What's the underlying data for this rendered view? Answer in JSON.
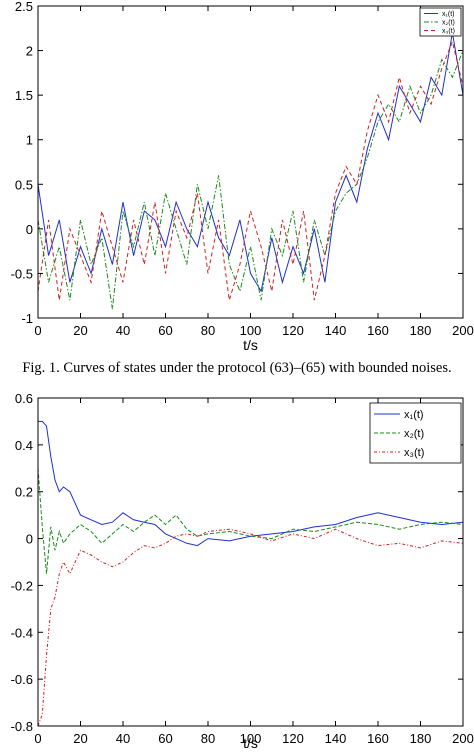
{
  "caption": "Fig. 1.   Curves of states under the protocol (63)–(65) with bounded noises.",
  "chart_data": [
    {
      "type": "line",
      "xlabel": "t/s",
      "ylabel": "",
      "xlim": [
        0,
        200
      ],
      "ylim": [
        -1,
        2.5
      ],
      "xticks": [
        "0",
        "20",
        "40",
        "60",
        "80",
        "100",
        "120",
        "140",
        "160",
        "180",
        "200"
      ],
      "yticks": [
        "-1",
        "-0.5",
        "0",
        "0.5",
        "1",
        "1.5",
        "2",
        "2.5"
      ],
      "grid": false,
      "legend": "top-right",
      "x": [
        0,
        5,
        10,
        15,
        20,
        25,
        30,
        35,
        40,
        45,
        50,
        55,
        60,
        65,
        70,
        75,
        80,
        85,
        90,
        95,
        100,
        105,
        110,
        115,
        120,
        125,
        130,
        135,
        140,
        145,
        150,
        155,
        160,
        165,
        170,
        175,
        180,
        185,
        190,
        195,
        200
      ],
      "series": [
        {
          "name": "x₁(t)",
          "color": "#1f2fd0",
          "dash": "",
          "values": [
            0.5,
            -0.3,
            0.1,
            -0.6,
            -0.2,
            -0.5,
            0.0,
            -0.4,
            0.3,
            -0.3,
            0.2,
            0.1,
            -0.2,
            0.3,
            0.0,
            -0.2,
            0.3,
            -0.1,
            -0.3,
            0.1,
            -0.5,
            -0.7,
            -0.1,
            -0.6,
            -0.2,
            -0.5,
            0.0,
            -0.6,
            0.3,
            0.6,
            0.3,
            0.9,
            1.3,
            1.0,
            1.6,
            1.4,
            1.2,
            1.7,
            1.5,
            2.2,
            1.5
          ]
        },
        {
          "name": "x₂(t)",
          "color": "#1a8a1a",
          "dash": "5,2,1.5,2",
          "values": [
            0.1,
            -0.6,
            -0.2,
            -0.8,
            0.1,
            -0.4,
            -0.1,
            -0.9,
            0.2,
            -0.2,
            0.3,
            -0.3,
            0.4,
            0.0,
            -0.4,
            0.5,
            0.0,
            0.6,
            -0.4,
            -0.7,
            -0.2,
            -0.8,
            0.0,
            -0.3,
            0.2,
            -0.6,
            0.1,
            -0.3,
            0.2,
            0.4,
            0.5,
            0.8,
            1.2,
            1.4,
            1.2,
            1.6,
            1.3,
            1.5,
            1.9,
            1.7,
            2.0
          ]
        },
        {
          "name": "x₃(t)",
          "color": "#d02020",
          "dash": "4,3",
          "values": [
            -0.7,
            0.1,
            -0.8,
            0.0,
            -0.3,
            -0.6,
            0.2,
            -0.2,
            -0.6,
            0.1,
            -0.4,
            0.3,
            -0.5,
            0.2,
            -0.1,
            0.4,
            -0.5,
            0.1,
            -0.8,
            -0.4,
            0.2,
            -0.2,
            -0.7,
            0.1,
            -0.4,
            0.2,
            -0.8,
            -0.3,
            0.4,
            0.7,
            0.5,
            1.1,
            1.5,
            1.2,
            1.7,
            1.3,
            1.6,
            1.4,
            1.8,
            2.1,
            1.6
          ]
        }
      ]
    },
    {
      "type": "line",
      "xlabel": "t/s",
      "ylabel": "",
      "xlim": [
        0,
        200
      ],
      "ylim": [
        -0.8,
        0.6
      ],
      "xticks": [
        "0",
        "20",
        "40",
        "60",
        "80",
        "100",
        "120",
        "140",
        "160",
        "180",
        "200"
      ],
      "yticks": [
        "-0.8",
        "-0.6",
        "-0.4",
        "-0.2",
        "0",
        "0.2",
        "0.4",
        "0.6"
      ],
      "grid": false,
      "legend": "top-right",
      "x": [
        0,
        2,
        4,
        6,
        8,
        10,
        12,
        15,
        20,
        25,
        30,
        35,
        40,
        45,
        50,
        55,
        60,
        65,
        70,
        75,
        80,
        90,
        100,
        110,
        120,
        130,
        140,
        150,
        160,
        170,
        180,
        190,
        200
      ],
      "series": [
        {
          "name": "x₁(t)",
          "color": "#1f2fd0",
          "dash": "",
          "values": [
            0.5,
            0.5,
            0.48,
            0.35,
            0.25,
            0.2,
            0.22,
            0.2,
            0.1,
            0.08,
            0.06,
            0.07,
            0.11,
            0.08,
            0.07,
            0.06,
            0.02,
            0.0,
            -0.02,
            -0.03,
            0.0,
            -0.01,
            0.01,
            0.02,
            0.03,
            0.05,
            0.06,
            0.09,
            0.11,
            0.09,
            0.07,
            0.06,
            0.07
          ]
        },
        {
          "name": "x₂(t)",
          "color": "#1a8a1a",
          "dash": "4,2",
          "values": [
            0.3,
            0.05,
            -0.15,
            0.05,
            -0.05,
            0.03,
            -0.02,
            0.02,
            0.06,
            0.03,
            -0.02,
            0.02,
            0.06,
            0.03,
            0.07,
            0.1,
            0.06,
            0.1,
            0.04,
            0.01,
            0.02,
            0.03,
            0.01,
            0.0,
            0.04,
            0.03,
            0.05,
            0.07,
            0.06,
            0.04,
            0.06,
            0.07,
            0.06
          ]
        },
        {
          "name": "x₃(t)",
          "color": "#d02020",
          "dash": "3,2,1,2",
          "values": [
            -0.8,
            -0.75,
            -0.5,
            -0.3,
            -0.25,
            -0.15,
            -0.1,
            -0.15,
            -0.05,
            -0.07,
            -0.1,
            -0.12,
            -0.1,
            -0.06,
            -0.03,
            -0.04,
            -0.02,
            0.01,
            0.02,
            0.01,
            0.03,
            0.04,
            0.02,
            -0.01,
            0.02,
            0.0,
            0.04,
            0.0,
            -0.03,
            -0.02,
            -0.04,
            -0.01,
            -0.02
          ]
        }
      ]
    }
  ]
}
